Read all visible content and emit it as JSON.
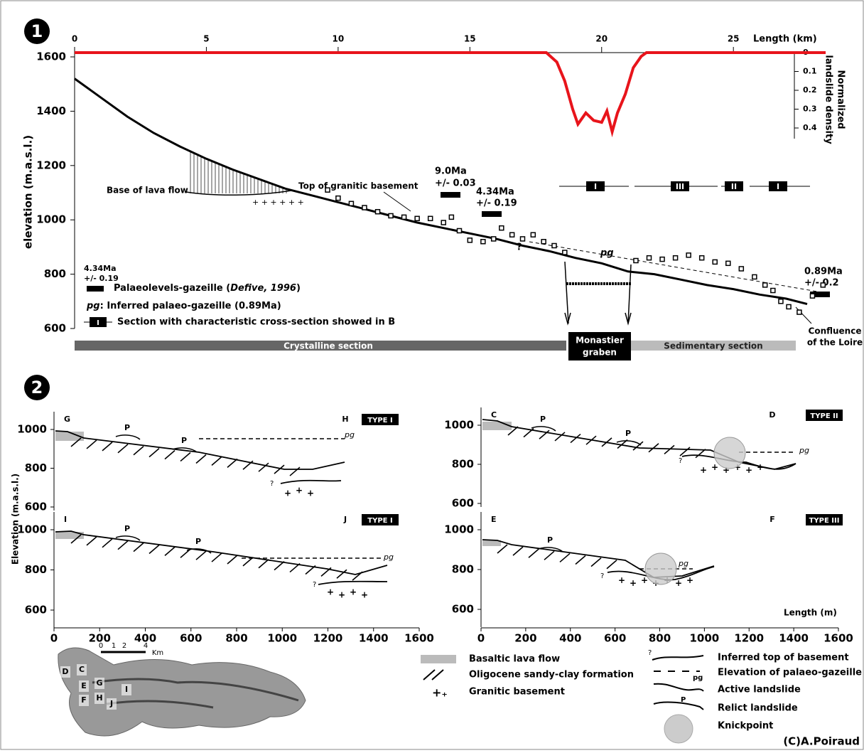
{
  "panel1": {
    "number": "1",
    "x_label": "Length (km)",
    "y_label": "elevation (m.a.s.l.)",
    "y2_label": [
      "Normalized",
      "landslide density"
    ],
    "xlim": [
      0,
      28.5
    ],
    "xticks": [
      0,
      5,
      10,
      15,
      20,
      25
    ],
    "ylim": [
      600,
      1600
    ],
    "yticks": [
      600,
      800,
      1000,
      1200,
      1400,
      1600
    ],
    "y2lim": [
      0,
      0.4
    ],
    "y2ticks": [
      0,
      0.1,
      0.2,
      0.3,
      0.4
    ],
    "profile": {
      "x": [
        0,
        1,
        2,
        3,
        4,
        5,
        6,
        7,
        8,
        9,
        10,
        11,
        12,
        13,
        14,
        15,
        16,
        17,
        18,
        19,
        20,
        21,
        22,
        23,
        24,
        25,
        26,
        27,
        27.8
      ],
      "values": [
        1520,
        1450,
        1380,
        1320,
        1270,
        1225,
        1185,
        1150,
        1115,
        1090,
        1065,
        1040,
        1015,
        990,
        970,
        950,
        930,
        905,
        885,
        860,
        840,
        810,
        800,
        780,
        760,
        745,
        725,
        710,
        690
      ]
    },
    "density": {
      "x": [
        0,
        17.9,
        18.3,
        18.6,
        18.9,
        19.1,
        19.4,
        19.7,
        20,
        20.2,
        20.4,
        20.6,
        20.9,
        21.2,
        21.5,
        21.7,
        28.5
      ],
      "values": [
        0,
        0,
        0.05,
        0.15,
        0.3,
        0.38,
        0.32,
        0.36,
        0.37,
        0.31,
        0.42,
        0.32,
        0.22,
        0.08,
        0.02,
        0,
        0
      ]
    },
    "basement": {
      "x": [
        9.6,
        10,
        10.5,
        11,
        11.5,
        12,
        12.5,
        13,
        13.5,
        14,
        14.3,
        14.6,
        15,
        15.5,
        15.9,
        16.2,
        16.6,
        17,
        17.4,
        17.8,
        18.2,
        18.6,
        21.3,
        21.8,
        22.3,
        22.8,
        23.3,
        23.8,
        24.3,
        24.8,
        25.3,
        25.8,
        26.2,
        26.5,
        26.8,
        27.1,
        27.5,
        28,
        28.4
      ],
      "values": [
        1110,
        1080,
        1060,
        1045,
        1030,
        1015,
        1010,
        1005,
        1005,
        990,
        1010,
        960,
        925,
        920,
        930,
        970,
        945,
        930,
        945,
        920,
        905,
        880,
        850,
        860,
        855,
        860,
        870,
        860,
        845,
        840,
        820,
        790,
        760,
        740,
        700,
        680,
        660,
        720,
        760
      ]
    },
    "labels": {
      "lava": "Base of lava flow",
      "basement": "Top of granitic basement",
      "age1": [
        "9.0Ma",
        "+/- 0.03"
      ],
      "age2": [
        "4.34Ma",
        "+/- 0.19"
      ],
      "pg": "pg",
      "q": "?",
      "age3": [
        "0.89Ma",
        "+/- 0.2"
      ],
      "confluence": [
        "Confluence",
        "of the Loire"
      ]
    },
    "sections": [
      "I",
      "III",
      "II",
      "I"
    ],
    "legend": {
      "age": [
        "4.34Ma",
        "+/- 0.19"
      ],
      "palaeo": "Palaeolevels-gazeille (",
      "ref": "Defive, 1996",
      "close": ")",
      "pg": "pg",
      "pg_text": ": Inferred palaeo-gazeille (0.89Ma)",
      "section_box": "I",
      "section": "Section with characteristic cross-section showed in B"
    },
    "bar": {
      "crystalline": "Crystalline section",
      "graben": [
        "Monastier",
        "graben"
      ],
      "sedimentary": "Sedimentary section"
    }
  },
  "panel2": {
    "number": "2",
    "y_label": "Elevation (m.a.s.l.)",
    "x_label": "Length (m)",
    "xticks": [
      0,
      200,
      400,
      600,
      800,
      1000,
      1200,
      1400,
      1600
    ],
    "yticks": [
      600,
      800,
      1000
    ],
    "plots": [
      {
        "start": "G",
        "end": "H",
        "type": "TYPE I"
      },
      {
        "start": "I",
        "end": "J",
        "type": "TYPE I"
      },
      {
        "start": "C",
        "end": "D",
        "type": "TYPE II"
      },
      {
        "start": "E",
        "end": "F",
        "type": "TYPE III"
      }
    ],
    "p": "P",
    "pg": "pg",
    "q": "?"
  },
  "legend2": {
    "lava": "Basaltic lava flow",
    "oligocene": "Oligocene sandy-clay formation",
    "granite": "Granitic basement",
    "top": "Inferred top of basement",
    "pg_mark": "pg",
    "palaeo": "Elevation of palaeo-gazeille",
    "active": "Active landslide",
    "relict": "Relict landslide",
    "relict_p": "P",
    "knick": "Knickpoint",
    "q": "?"
  },
  "map": {
    "labels": [
      "D",
      "C",
      "E",
      "G",
      "F",
      "H",
      "J",
      "I"
    ],
    "scale": [
      "0",
      "1",
      "2",
      "4",
      "Km"
    ]
  },
  "credit": "(C)A.Poiraud"
}
